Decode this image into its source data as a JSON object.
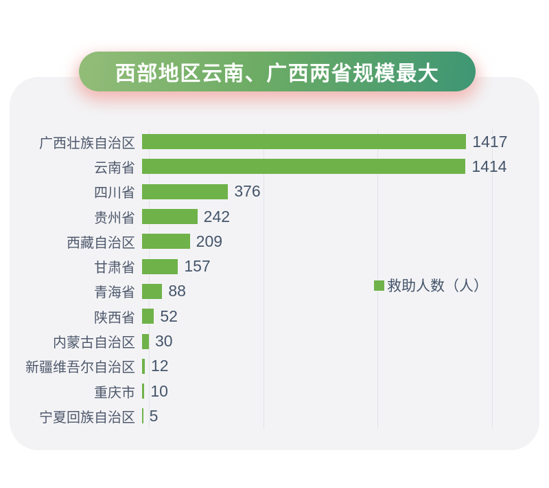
{
  "banner": {
    "title": "西部地区云南、广西两省规模最大",
    "gradient_left": "#93bd79",
    "gradient_right": "#3e9674",
    "text_color": "#ffffff"
  },
  "legend": {
    "label": "救助人数（人）",
    "swatch_color": "#6fb24a"
  },
  "chart_data": {
    "type": "bar",
    "orientation": "horizontal",
    "title": "西部地区云南、广西两省规模最大",
    "series_name": "救助人数（人）",
    "categories": [
      "广西壮族自治区",
      "云南省",
      "四川省",
      "贵州省",
      "西藏自治区",
      "甘肃省",
      "青海省",
      "陕西省",
      "内蒙古自治区",
      "新疆维吾尔自治区",
      "重庆市",
      "宁夏回族自治区"
    ],
    "values": [
      1417,
      1414,
      376,
      242,
      209,
      157,
      88,
      52,
      30,
      12,
      10,
      5
    ],
    "xlim": [
      0,
      1500
    ],
    "gridline_interval": 500,
    "grid": true,
    "value_labels": "outside-end",
    "bar_color": "#6fb24a",
    "value_label_color": "#44546a",
    "category_label_color": "#4e586c",
    "legend_position": "right-middle",
    "card_background": "#f3f3f5",
    "page_background": "#ffffff"
  }
}
